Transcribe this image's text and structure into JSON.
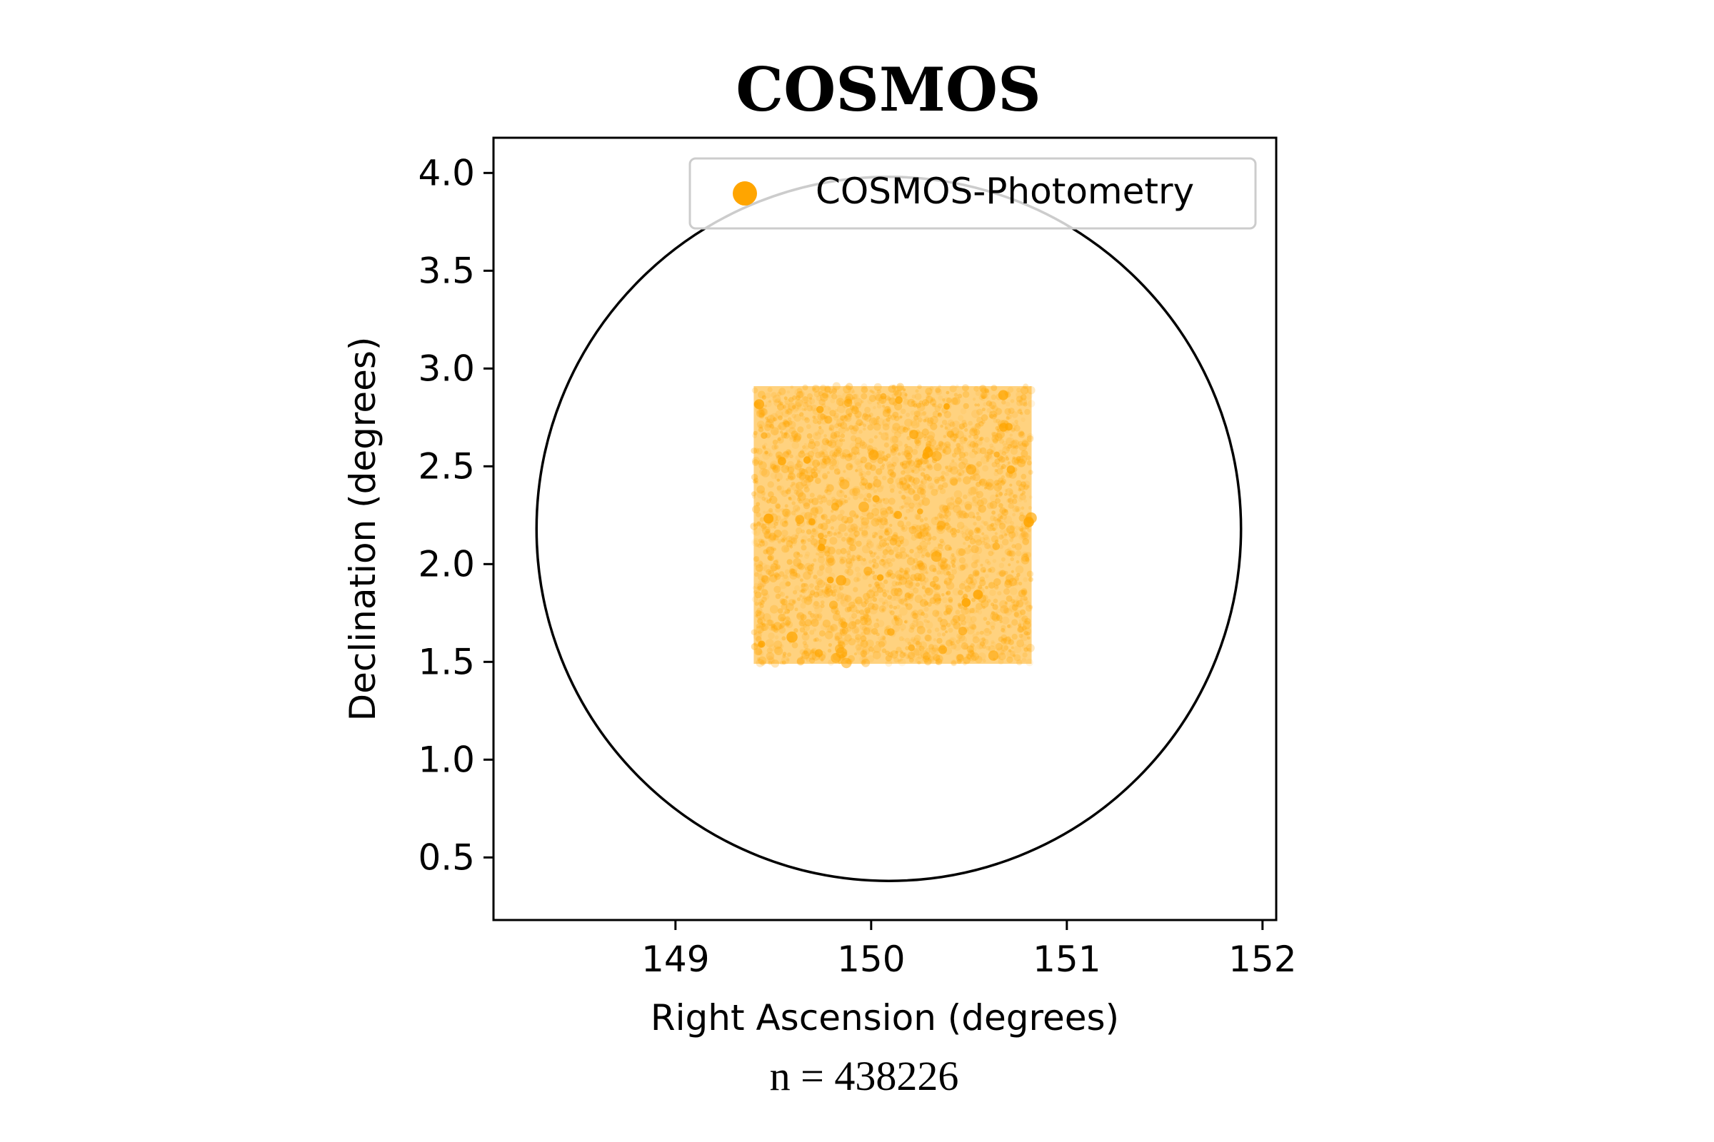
{
  "chart_data": {
    "type": "scatter",
    "title": "COSMOS",
    "xlabel": "Right Ascension (degrees)",
    "ylabel": "Declination (degrees)",
    "footer": "n = 438226",
    "xlim": [
      148.07,
      152.07
    ],
    "ylim": [
      0.18,
      4.18
    ],
    "xticks": [
      149,
      150,
      151,
      152
    ],
    "xtick_labels": [
      "149",
      "150",
      "151",
      "152"
    ],
    "yticks": [
      0.5,
      1.0,
      1.5,
      2.0,
      2.5,
      3.0,
      3.5,
      4.0
    ],
    "ytick_labels": [
      "0.5",
      "1.0",
      "1.5",
      "2.0",
      "2.5",
      "3.0",
      "3.5",
      "4.0"
    ],
    "grid": false,
    "legend": {
      "placement": "upper right",
      "entries": [
        {
          "label": "COSMOS-Photometry",
          "color": "#ffa500"
        }
      ]
    },
    "series": [
      {
        "name": "COSMOS-Photometry",
        "color": "#ffa500",
        "count": 438226,
        "ra_range": [
          149.4,
          150.82
        ],
        "dec_range": [
          1.49,
          2.91
        ]
      }
    ],
    "circle": {
      "center_ra": 150.09,
      "center_dec": 2.18,
      "radius_deg": 1.8,
      "color": "#000000"
    }
  }
}
